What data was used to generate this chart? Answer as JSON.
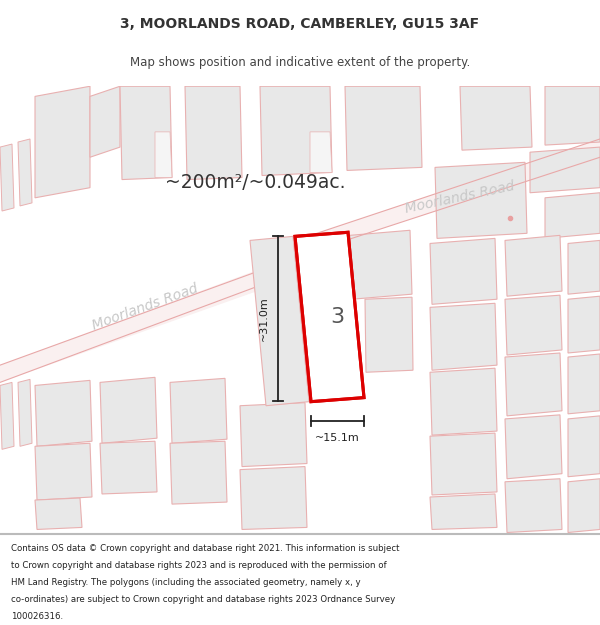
{
  "title_line1": "3, MOORLANDS ROAD, CAMBERLEY, GU15 3AF",
  "title_line2": "Map shows position and indicative extent of the property.",
  "area_text": "~200m²/~0.049ac.",
  "number_label": "3",
  "dim_width": "~15.1m",
  "dim_height": "~31.0m",
  "road_label_left": "Moorlands Road",
  "road_label_right": "Moorlands Road",
  "footer_lines": [
    "Contains OS data © Crown copyright and database right 2021. This information is subject",
    "to Crown copyright and database rights 2023 and is reproduced with the permission of",
    "HM Land Registry. The polygons (including the associated geometry, namely x, y",
    "co-ordinates) are subject to Crown copyright and database rights 2023 Ordnance Survey",
    "100026316."
  ],
  "bg_color": "#ffffff",
  "map_bg": "#ffffff",
  "building_fill": "#e8e8e8",
  "building_edge": "#e8b0b0",
  "plot_fill": "#ffffff",
  "plot_edge": "#dd0000",
  "dim_color": "#222222",
  "road_label_color": "#c8c8c8"
}
